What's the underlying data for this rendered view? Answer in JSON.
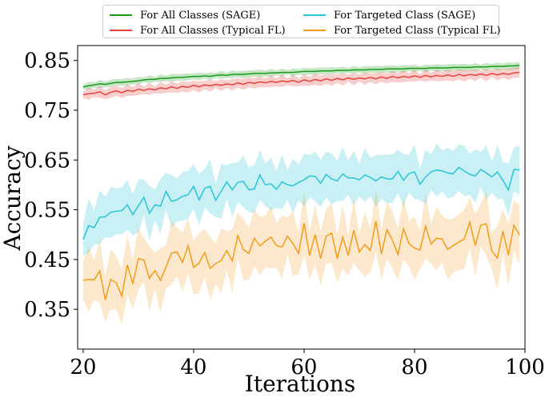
{
  "chart_data": {
    "type": "line",
    "title": "",
    "xlabel": "Iterations",
    "ylabel": "Accuracy",
    "xlim": [
      19,
      100
    ],
    "ylim": [
      0.27,
      0.88
    ],
    "xticks": [
      20,
      40,
      60,
      80,
      100
    ],
    "xtick_labels": [
      "20",
      "40",
      "60",
      "80",
      "100"
    ],
    "yticks": [
      0.35,
      0.45,
      0.55,
      0.65,
      0.75,
      0.85
    ],
    "ytick_labels": [
      "0.35",
      "0.45",
      "0.55",
      "0.65",
      "0.75",
      "0.85"
    ],
    "grid": false,
    "legend_position": "top-center-outside",
    "x": [
      20,
      21,
      22,
      23,
      24,
      25,
      26,
      27,
      28,
      29,
      30,
      31,
      32,
      33,
      34,
      35,
      36,
      37,
      38,
      39,
      40,
      41,
      42,
      43,
      44,
      45,
      46,
      47,
      48,
      49,
      50,
      51,
      52,
      53,
      54,
      55,
      56,
      57,
      58,
      59,
      60,
      61,
      62,
      63,
      64,
      65,
      66,
      67,
      68,
      69,
      70,
      71,
      72,
      73,
      74,
      75,
      76,
      77,
      78,
      79,
      80,
      81,
      82,
      83,
      84,
      85,
      86,
      87,
      88,
      89,
      90,
      91,
      92,
      93,
      94,
      95,
      96,
      97,
      98,
      99
    ],
    "series": [
      {
        "name": "For All Classes (SAGE)",
        "color": "#1a9a1a",
        "values": [
          0.797,
          0.799,
          0.801,
          0.803,
          0.802,
          0.804,
          0.806,
          0.806,
          0.807,
          0.808,
          0.809,
          0.811,
          0.812,
          0.812,
          0.814,
          0.814,
          0.815,
          0.816,
          0.816,
          0.817,
          0.818,
          0.818,
          0.819,
          0.818,
          0.82,
          0.821,
          0.82,
          0.822,
          0.822,
          0.822,
          0.823,
          0.824,
          0.824,
          0.824,
          0.825,
          0.825,
          0.826,
          0.826,
          0.826,
          0.827,
          0.828,
          0.828,
          0.828,
          0.829,
          0.829,
          0.829,
          0.83,
          0.83,
          0.83,
          0.831,
          0.831,
          0.831,
          0.832,
          0.832,
          0.832,
          0.833,
          0.833,
          0.833,
          0.833,
          0.834,
          0.834,
          0.834,
          0.834,
          0.835,
          0.835,
          0.835,
          0.835,
          0.836,
          0.836,
          0.836,
          0.836,
          0.837,
          0.837,
          0.837,
          0.838,
          0.838,
          0.838,
          0.839,
          0.839,
          0.84
        ],
        "band_width": 0.008
      },
      {
        "name": "For All Classes (Typical FL)",
        "color": "#e8413c",
        "values": [
          0.781,
          0.783,
          0.784,
          0.787,
          0.781,
          0.786,
          0.789,
          0.785,
          0.79,
          0.788,
          0.792,
          0.79,
          0.793,
          0.791,
          0.795,
          0.793,
          0.797,
          0.794,
          0.798,
          0.796,
          0.8,
          0.797,
          0.801,
          0.799,
          0.802,
          0.8,
          0.803,
          0.801,
          0.805,
          0.802,
          0.806,
          0.804,
          0.807,
          0.805,
          0.808,
          0.806,
          0.809,
          0.807,
          0.81,
          0.806,
          0.811,
          0.808,
          0.812,
          0.809,
          0.813,
          0.81,
          0.814,
          0.811,
          0.815,
          0.812,
          0.815,
          0.813,
          0.816,
          0.813,
          0.817,
          0.814,
          0.818,
          0.815,
          0.818,
          0.816,
          0.819,
          0.816,
          0.82,
          0.817,
          0.82,
          0.818,
          0.821,
          0.818,
          0.822,
          0.819,
          0.822,
          0.82,
          0.823,
          0.82,
          0.824,
          0.821,
          0.824,
          0.822,
          0.825,
          0.826
        ],
        "band_width": 0.012
      },
      {
        "name": "For Targeted Class (SAGE)",
        "color": "#28c4d6",
        "values": [
          0.49,
          0.518,
          0.514,
          0.535,
          0.536,
          0.545,
          0.547,
          0.548,
          0.56,
          0.54,
          0.558,
          0.575,
          0.543,
          0.56,
          0.557,
          0.587,
          0.567,
          0.57,
          0.577,
          0.58,
          0.597,
          0.57,
          0.593,
          0.597,
          0.569,
          0.587,
          0.606,
          0.59,
          0.605,
          0.607,
          0.59,
          0.592,
          0.62,
          0.6,
          0.602,
          0.591,
          0.606,
          0.6,
          0.598,
          0.605,
          0.61,
          0.618,
          0.617,
          0.603,
          0.621,
          0.612,
          0.608,
          0.622,
          0.614,
          0.614,
          0.61,
          0.62,
          0.615,
          0.608,
          0.616,
          0.612,
          0.612,
          0.627,
          0.609,
          0.623,
          0.626,
          0.601,
          0.616,
          0.626,
          0.63,
          0.628,
          0.624,
          0.622,
          0.635,
          0.628,
          0.621,
          0.618,
          0.631,
          0.624,
          0.616,
          0.626,
          0.609,
          0.59,
          0.631,
          0.63
        ],
        "band_width": 0.055
      },
      {
        "name": "For Targeted Class (Typical FL)",
        "color": "#f39b1a",
        "values": [
          0.408,
          0.41,
          0.409,
          0.427,
          0.369,
          0.41,
          0.403,
          0.376,
          0.439,
          0.401,
          0.452,
          0.449,
          0.412,
          0.428,
          0.408,
          0.435,
          0.463,
          0.465,
          0.444,
          0.478,
          0.434,
          0.443,
          0.464,
          0.432,
          0.442,
          0.448,
          0.468,
          0.447,
          0.498,
          0.47,
          0.462,
          0.493,
          0.477,
          0.487,
          0.495,
          0.478,
          0.475,
          0.497,
          0.482,
          0.462,
          0.523,
          0.458,
          0.5,
          0.452,
          0.497,
          0.503,
          0.452,
          0.495,
          0.458,
          0.509,
          0.465,
          0.48,
          0.468,
          0.527,
          0.461,
          0.51,
          0.489,
          0.46,
          0.512,
          0.482,
          0.473,
          0.469,
          0.517,
          0.481,
          0.493,
          0.491,
          0.47,
          0.478,
          0.485,
          0.491,
          0.525,
          0.478,
          0.519,
          0.522,
          0.467,
          0.453,
          0.507,
          0.459,
          0.519,
          0.499
        ],
        "band_width": 0.065
      }
    ]
  }
}
